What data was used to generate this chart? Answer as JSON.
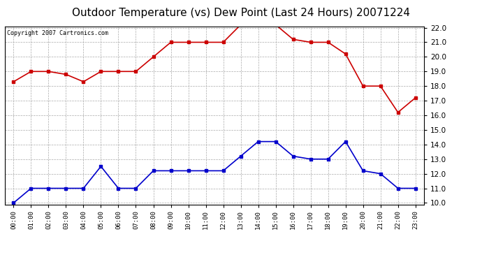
{
  "title": "Outdoor Temperature (vs) Dew Point (Last 24 Hours) 20071224",
  "copyright_text": "Copyright 2007 Cartronics.com",
  "x_labels": [
    "00:00",
    "01:00",
    "02:00",
    "03:00",
    "04:00",
    "05:00",
    "06:00",
    "07:00",
    "08:00",
    "09:00",
    "10:00",
    "11:00",
    "12:00",
    "13:00",
    "14:00",
    "15:00",
    "16:00",
    "17:00",
    "18:00",
    "19:00",
    "20:00",
    "21:00",
    "22:00",
    "23:00"
  ],
  "temp_data": [
    18.3,
    19.0,
    19.0,
    18.8,
    18.3,
    19.0,
    19.0,
    19.0,
    20.0,
    21.0,
    21.0,
    21.0,
    21.0,
    22.2,
    22.2,
    22.2,
    21.2,
    21.0,
    21.0,
    20.2,
    18.0,
    18.0,
    16.2,
    17.2
  ],
  "dew_data": [
    10.0,
    11.0,
    11.0,
    11.0,
    11.0,
    12.5,
    11.0,
    11.0,
    12.2,
    12.2,
    12.2,
    12.2,
    12.2,
    13.2,
    14.2,
    14.2,
    13.2,
    13.0,
    13.0,
    14.2,
    12.2,
    12.0,
    11.0,
    11.0
  ],
  "temp_color": "#cc0000",
  "dew_color": "#0000cc",
  "ylim": [
    10.0,
    22.0
  ],
  "yticks": [
    10.0,
    11.0,
    12.0,
    13.0,
    14.0,
    15.0,
    16.0,
    17.0,
    18.0,
    19.0,
    20.0,
    21.0,
    22.0
  ],
  "grid_color": "#aaaaaa",
  "background_color": "#ffffff",
  "title_fontsize": 11,
  "marker": "s",
  "marker_size": 3,
  "line_width": 1.2
}
